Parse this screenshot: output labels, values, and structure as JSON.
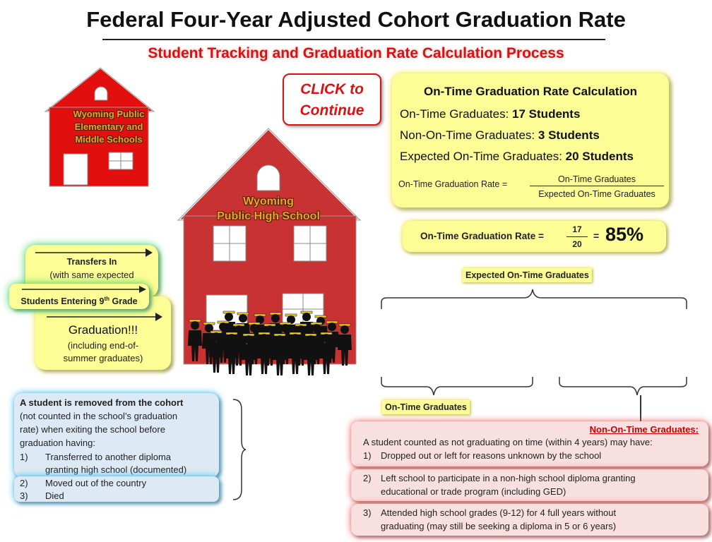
{
  "header": {
    "title": "Federal Four-Year Adjusted Cohort Graduation Rate",
    "subtitle": "Student Tracking and Graduation Rate Calculation Process"
  },
  "click_button": {
    "line1": "CLICK to",
    "line2": "Continue"
  },
  "calculation": {
    "heading": "On-Time Graduation Rate Calculation",
    "ontime_label": "On-Time Graduates:",
    "ontime_value": "17 Students",
    "nonontime_label": "Non-On-Time Graduates:",
    "nonontime_value": "3 Students",
    "expected_label": "Expected On-Time Graduates:",
    "expected_value": "20 Students",
    "formula_label": "On-Time Graduation Rate =",
    "formula_numerator": "On-Time Graduates",
    "formula_denominator": "Expected On-Time Graduates"
  },
  "rate_box": {
    "label": "On-Time Graduation Rate =",
    "numerator": "17",
    "denominator": "20",
    "equals": "=",
    "result": "85%"
  },
  "tags": {
    "expected": "Expected On-Time Graduates",
    "ontime": "On-Time Graduates"
  },
  "schools": {
    "elementary_line1": "Wyoming Public",
    "elementary_line2": "Elementary and",
    "elementary_line3": "Middle Schools",
    "high_line1": "Wyoming",
    "high_line2": "Public High School"
  },
  "transfers": {
    "title": "Transfers In",
    "sub": "(with same expected"
  },
  "entering": {
    "text": "Students Entering 9",
    "sup": "th",
    "tail": " Grade"
  },
  "graduation": {
    "title": "Graduation!!!",
    "sub1": "(including end-of-",
    "sub2": "summer graduates)"
  },
  "removed": {
    "title": "A student is removed from the cohort",
    "line1": "(not counted in the school’s graduation",
    "line2": "rate) when exiting the school before",
    "line3": "graduation having:",
    "items": [
      {
        "num": "1)",
        "line1": "Transferred to another diploma",
        "line2": "granting high school (documented)"
      },
      {
        "num": "2)",
        "line1": "Moved out of the country"
      },
      {
        "num": "3)",
        "line1": "Died"
      }
    ]
  },
  "non_ontime": {
    "title": "Non-On-Time Graduates:",
    "intro": "A student counted as not graduating on time (within 4 years) may have:",
    "items": [
      {
        "num": "1)",
        "line1": "Dropped out or left for reasons unknown  by the school"
      },
      {
        "num": "2)",
        "line1": "Left school to participate in a non-high school diploma granting",
        "line2": "educational or trade program (including GED)"
      },
      {
        "num": "3)",
        "line1": "Attended high school grades (9-12) for 4 full years without",
        "line2": "graduating (may still be seeking a diploma in 5 or 6 years)"
      }
    ]
  },
  "colors": {
    "accent_red": "#d41414",
    "highlight_yellow": "#fdfd95",
    "house_red": "#c93232"
  }
}
